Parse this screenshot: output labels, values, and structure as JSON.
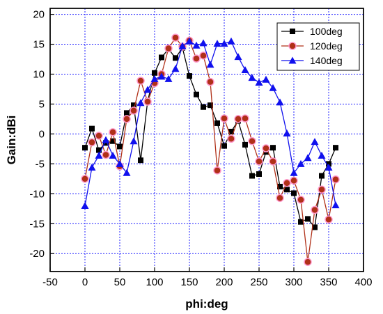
{
  "chart_data": {
    "type": "line",
    "xlabel": "phi:deg",
    "ylabel": "Gain:dBi",
    "xlim": [
      -50,
      400
    ],
    "ylim": [
      -23,
      21
    ],
    "xticks": [
      -50,
      0,
      50,
      100,
      150,
      200,
      250,
      300,
      350,
      400
    ],
    "yticks": [
      -20,
      -15,
      -10,
      -5,
      0,
      5,
      10,
      15,
      20
    ],
    "grid": true,
    "legend_position": "top-right",
    "x": [
      0,
      10,
      20,
      30,
      40,
      50,
      60,
      70,
      80,
      90,
      100,
      110,
      120,
      130,
      140,
      150,
      160,
      170,
      180,
      190,
      200,
      210,
      220,
      230,
      240,
      250,
      260,
      270,
      280,
      290,
      300,
      310,
      320,
      330,
      340,
      350,
      360
    ],
    "series": [
      {
        "name": "100deg",
        "color": "#000000",
        "marker": "square",
        "values": [
          -2.3,
          0.9,
          -2.7,
          -1.5,
          -1.2,
          -2.1,
          3.5,
          4.8,
          -4.4,
          5.5,
          10.2,
          12.8,
          14.2,
          12.7,
          14.4,
          9.7,
          6.6,
          4.5,
          4.8,
          1.8,
          -2.0,
          0.4,
          2.2,
          -1.8,
          -7.0,
          -6.7,
          -3.0,
          -2.3,
          -8.8,
          -9.3,
          -9.9,
          -14.7,
          -14.2,
          -15.6,
          -7.0,
          -5.0,
          -2.3
        ]
      },
      {
        "name": "120deg",
        "color": "#b03018",
        "marker": "circle",
        "values": [
          -7.5,
          -1.4,
          -0.3,
          -3.5,
          0.3,
          -5.4,
          2.5,
          3.9,
          8.9,
          5.4,
          8.5,
          10.0,
          14.3,
          16.1,
          14.6,
          15.6,
          12.6,
          13.1,
          8.7,
          -6.1,
          2.6,
          -0.8,
          2.5,
          2.6,
          -1.2,
          -4.6,
          -2.4,
          -4.6,
          -10.7,
          -8.2,
          -7.8,
          -11.0,
          -21.4,
          -12.7,
          -9.3,
          -14.3,
          -7.6
        ]
      },
      {
        "name": "140deg",
        "color": "#1010ee",
        "marker": "triangle",
        "values": [
          -12.0,
          -5.6,
          -3.6,
          -1.0,
          -3.6,
          -5.0,
          -6.5,
          -1.2,
          5.2,
          7.4,
          9.2,
          9.6,
          9.2,
          10.9,
          14.7,
          15.5,
          14.8,
          15.2,
          11.6,
          15.1,
          15.1,
          15.5,
          12.9,
          10.7,
          9.4,
          8.6,
          9.1,
          7.7,
          5.3,
          0.1,
          -6.5,
          -5.0,
          -4.0,
          -1.3,
          -3.6,
          -5.6,
          -11.9
        ]
      }
    ]
  }
}
